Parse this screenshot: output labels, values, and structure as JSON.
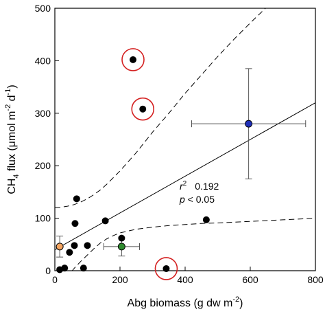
{
  "chart_data": {
    "type": "scatter",
    "xlim": [
      0,
      800
    ],
    "ylim": [
      0,
      500
    ],
    "xticks": [
      0,
      200,
      400,
      600,
      800
    ],
    "yticks": [
      0,
      100,
      200,
      300,
      400,
      500
    ],
    "xlabel": {
      "base": "Abg biomass (g dw m",
      "sup": "-2",
      "tail": ")"
    },
    "ylabel": {
      "p1": "CH",
      "sub": "4",
      "p2": " flux (μmol m",
      "sup1": "-2",
      "p3": " d",
      "sup2": "-1",
      "p4": ")"
    },
    "annotation": {
      "r2_label": "r",
      "r2_sup": "2",
      "r2_value": "0.192",
      "p_label": "p",
      "p_value": " < 0.05"
    },
    "points": [
      {
        "x": 15,
        "y": 2
      },
      {
        "x": 30,
        "y": 5
      },
      {
        "x": 45,
        "y": 35
      },
      {
        "x": 60,
        "y": 48
      },
      {
        "x": 62,
        "y": 90
      },
      {
        "x": 67,
        "y": 137
      },
      {
        "x": 88,
        "y": 5
      },
      {
        "x": 100,
        "y": 48
      },
      {
        "x": 155,
        "y": 95
      },
      {
        "x": 205,
        "y": 62
      },
      {
        "x": 465,
        "y": 97
      }
    ],
    "outliers": [
      {
        "x": 240,
        "y": 402
      },
      {
        "x": 270,
        "y": 308
      },
      {
        "x": 342,
        "y": 4
      }
    ],
    "means": [
      {
        "x": 15,
        "y": 46,
        "color": "#f4a460",
        "xerr": 0,
        "yerr": 20
      },
      {
        "x": 205,
        "y": 46,
        "color": "#2e8b2e",
        "xerr": 55,
        "yerr": 18
      },
      {
        "x": 595,
        "y": 280,
        "color": "#1f2fb8",
        "xerr": 175,
        "yerr": 105
      }
    ],
    "regression": {
      "x": [
        0,
        800
      ],
      "y": [
        40,
        320
      ]
    },
    "ci_upper": {
      "x": [
        0,
        20,
        40,
        60,
        80,
        100,
        120,
        140,
        160,
        200,
        250,
        300,
        350,
        400,
        450,
        500,
        550,
        600,
        650,
        700
      ],
      "y": [
        120,
        121,
        123,
        126,
        131,
        137,
        145,
        154,
        165,
        190,
        225,
        264,
        300,
        338,
        373,
        408,
        441,
        472,
        502,
        530
      ]
    },
    "ci_lower": {
      "x": [
        0,
        20,
        40,
        60,
        80,
        100,
        120,
        140,
        160,
        180,
        200,
        250,
        300,
        350,
        400,
        450,
        500,
        600,
        700,
        800
      ],
      "y": [
        -40,
        -25,
        -10,
        5,
        18,
        30,
        42,
        53,
        61,
        67,
        72,
        79,
        83,
        86,
        88,
        90,
        91,
        94,
        97,
        100
      ]
    }
  }
}
